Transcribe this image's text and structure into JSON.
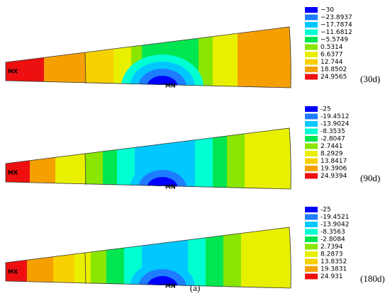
{
  "colors": [
    "#0000ff",
    "#1e7dff",
    "#00c8ff",
    "#00ffd2",
    "#00e650",
    "#8ae600",
    "#e8f000",
    "#f7d000",
    "#f5a000",
    "#ee1010"
  ],
  "panels": [
    {
      "legend": [
        "−30",
        "−23.8937",
        "−17.7874",
        "−11.6812",
        "−5.5749",
        "0.5314",
        "6.6377",
        "12.744",
        "18.8502",
        "24.9565"
      ],
      "mx": "MX",
      "mn": "MN",
      "label": "(30d)"
    },
    {
      "legend": [
        "-25",
        "-19.4512",
        "-13.9024",
        "-8.3535",
        "-2.8047",
        "2.7441",
        "8.2929",
        "13.8417",
        "19.3906",
        "24.9394"
      ],
      "mx": "MX",
      "mn": "MN",
      "label": "(90d)"
    },
    {
      "legend": [
        "-25",
        "-19.4521",
        "-13.9042",
        "-8.3563",
        "-2.8084",
        "2.7394",
        "8.2873",
        "13.8352",
        "19.3831",
        "24.931"
      ],
      "mx": "MX",
      "mn": "MN",
      "label": "(180d)"
    }
  ],
  "caption": "(a)"
}
